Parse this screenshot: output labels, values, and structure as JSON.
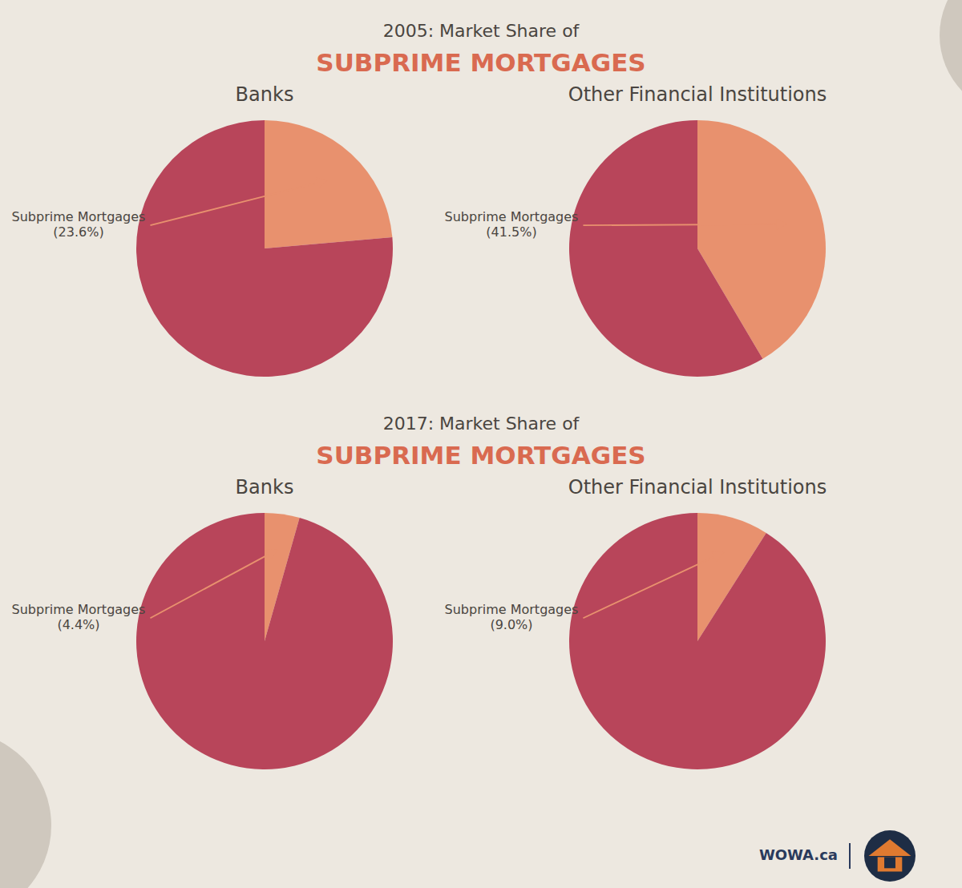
{
  "headings": [
    {
      "subtitle": "2005: Market Share of",
      "title": "SUBPRIME MORTGAGES"
    },
    {
      "subtitle": "2017: Market Share of",
      "title": "SUBPRIME MORTGAGES"
    }
  ],
  "footer": "WOWA.ca",
  "chart_data": [
    {
      "type": "pie",
      "title": "Banks",
      "values": [
        23.6,
        76.4
      ],
      "colors": [
        "#e8916e",
        "#b8455a"
      ],
      "annotations": [
        "Subprime Mortgages\n(23.6%)"
      ]
    },
    {
      "type": "pie",
      "title": "Other Financial Institutions",
      "values": [
        41.5,
        58.5
      ],
      "colors": [
        "#e8916e",
        "#b8455a"
      ],
      "annotations": [
        "Subprime Mortgages\n(41.5%)"
      ]
    },
    {
      "type": "pie",
      "title": "Banks",
      "values": [
        4.4,
        95.6
      ],
      "colors": [
        "#e8916e",
        "#b8455a"
      ],
      "annotations": [
        "Subprime Mortgages\n(4.4%)"
      ]
    },
    {
      "type": "pie",
      "title": "Other Financial Institutions",
      "values": [
        9.0,
        91.0
      ],
      "colors": [
        "#e8916e",
        "#b8455a"
      ],
      "annotations": [
        "Subprime Mortgages\n(9.0%)"
      ]
    }
  ]
}
